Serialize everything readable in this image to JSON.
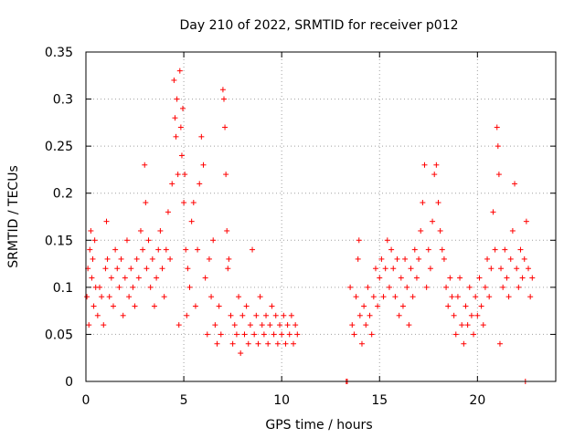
{
  "chart_data": {
    "type": "scatter",
    "title": "Day 210 of 2022, SRMTID for receiver p012",
    "xlabel": "GPS time / hours",
    "ylabel": "SRMTID / TECUs",
    "xlim": [
      0,
      24
    ],
    "ylim": [
      0,
      0.35
    ],
    "x_ticks": [
      0,
      5,
      10,
      15,
      20
    ],
    "x_tick_labels": [
      "0",
      "5",
      "10",
      "15",
      "20"
    ],
    "y_ticks": [
      0,
      0.05,
      0.1,
      0.15,
      0.2,
      0.25,
      0.3,
      0.35
    ],
    "y_tick_labels": [
      "0",
      "0.05",
      "0.1",
      "0.15",
      "0.2",
      "0.25",
      "0.3",
      "0.35"
    ],
    "grid": true,
    "marker": "+",
    "color": "#ff0000",
    "series": [
      {
        "name": "p012",
        "points": [
          [
            0.05,
            0.09
          ],
          [
            0.1,
            0.12
          ],
          [
            0.15,
            0.06
          ],
          [
            0.2,
            0.14
          ],
          [
            0.25,
            0.16
          ],
          [
            0.3,
            0.11
          ],
          [
            0.35,
            0.13
          ],
          [
            0.4,
            0.08
          ],
          [
            0.45,
            0.15
          ],
          [
            0.5,
            0.1
          ],
          [
            0.6,
            0.07
          ],
          [
            0.7,
            0.1
          ],
          [
            0.8,
            0.09
          ],
          [
            0.9,
            0.06
          ],
          [
            1.0,
            0.12
          ],
          [
            1.05,
            0.17
          ],
          [
            1.1,
            0.13
          ],
          [
            1.2,
            0.09
          ],
          [
            1.3,
            0.11
          ],
          [
            1.4,
            0.08
          ],
          [
            1.5,
            0.14
          ],
          [
            1.6,
            0.12
          ],
          [
            1.7,
            0.1
          ],
          [
            1.8,
            0.13
          ],
          [
            1.9,
            0.07
          ],
          [
            2.0,
            0.11
          ],
          [
            2.1,
            0.15
          ],
          [
            2.2,
            0.09
          ],
          [
            2.3,
            0.12
          ],
          [
            2.4,
            0.1
          ],
          [
            2.5,
            0.08
          ],
          [
            2.6,
            0.13
          ],
          [
            2.7,
            0.11
          ],
          [
            2.8,
            0.16
          ],
          [
            2.9,
            0.14
          ],
          [
            3.0,
            0.23
          ],
          [
            3.05,
            0.19
          ],
          [
            3.1,
            0.12
          ],
          [
            3.2,
            0.15
          ],
          [
            3.3,
            0.1
          ],
          [
            3.4,
            0.13
          ],
          [
            3.5,
            0.08
          ],
          [
            3.6,
            0.11
          ],
          [
            3.7,
            0.14
          ],
          [
            3.8,
            0.16
          ],
          [
            3.9,
            0.12
          ],
          [
            4.0,
            0.09
          ],
          [
            4.1,
            0.14
          ],
          [
            4.2,
            0.18
          ],
          [
            4.3,
            0.13
          ],
          [
            4.4,
            0.21
          ],
          [
            4.5,
            0.32
          ],
          [
            4.55,
            0.28
          ],
          [
            4.6,
            0.26
          ],
          [
            4.65,
            0.3
          ],
          [
            4.7,
            0.22
          ],
          [
            4.75,
            0.06
          ],
          [
            4.8,
            0.33
          ],
          [
            4.85,
            0.27
          ],
          [
            4.9,
            0.24
          ],
          [
            4.95,
            0.29
          ],
          [
            5.0,
            0.19
          ],
          [
            5.05,
            0.22
          ],
          [
            5.1,
            0.14
          ],
          [
            5.15,
            0.07
          ],
          [
            5.2,
            0.12
          ],
          [
            5.3,
            0.1
          ],
          [
            5.4,
            0.17
          ],
          [
            5.5,
            0.19
          ],
          [
            5.6,
            0.08
          ],
          [
            5.7,
            0.14
          ],
          [
            5.8,
            0.21
          ],
          [
            5.9,
            0.26
          ],
          [
            6.0,
            0.23
          ],
          [
            6.1,
            0.11
          ],
          [
            6.2,
            0.05
          ],
          [
            6.3,
            0.13
          ],
          [
            6.4,
            0.09
          ],
          [
            6.5,
            0.15
          ],
          [
            6.6,
            0.06
          ],
          [
            6.7,
            0.04
          ],
          [
            6.8,
            0.08
          ],
          [
            6.9,
            0.05
          ],
          [
            7.0,
            0.31
          ],
          [
            7.05,
            0.3
          ],
          [
            7.1,
            0.27
          ],
          [
            7.15,
            0.22
          ],
          [
            7.2,
            0.16
          ],
          [
            7.25,
            0.12
          ],
          [
            7.3,
            0.13
          ],
          [
            7.4,
            0.07
          ],
          [
            7.5,
            0.04
          ],
          [
            7.6,
            0.06
          ],
          [
            7.7,
            0.05
          ],
          [
            7.8,
            0.09
          ],
          [
            7.9,
            0.03
          ],
          [
            8.0,
            0.07
          ],
          [
            8.1,
            0.05
          ],
          [
            8.2,
            0.08
          ],
          [
            8.3,
            0.04
          ],
          [
            8.4,
            0.06
          ],
          [
            8.5,
            0.14
          ],
          [
            8.6,
            0.05
          ],
          [
            8.7,
            0.07
          ],
          [
            8.8,
            0.04
          ],
          [
            8.9,
            0.09
          ],
          [
            9.0,
            0.06
          ],
          [
            9.1,
            0.05
          ],
          [
            9.2,
            0.07
          ],
          [
            9.3,
            0.04
          ],
          [
            9.4,
            0.06
          ],
          [
            9.5,
            0.08
          ],
          [
            9.6,
            0.05
          ],
          [
            9.7,
            0.07
          ],
          [
            9.8,
            0.04
          ],
          [
            9.9,
            0.06
          ],
          [
            10.0,
            0.05
          ],
          [
            10.1,
            0.07
          ],
          [
            10.2,
            0.04
          ],
          [
            10.3,
            0.06
          ],
          [
            10.4,
            0.05
          ],
          [
            10.5,
            0.07
          ],
          [
            10.6,
            0.04
          ],
          [
            10.7,
            0.06
          ],
          [
            10.8,
            0.05
          ],
          [
            13.3,
            0.0
          ],
          [
            13.35,
            0.0
          ],
          [
            13.5,
            0.1
          ],
          [
            13.6,
            0.06
          ],
          [
            13.7,
            0.05
          ],
          [
            13.8,
            0.09
          ],
          [
            13.9,
            0.13
          ],
          [
            13.95,
            0.15
          ],
          [
            14.0,
            0.07
          ],
          [
            14.1,
            0.04
          ],
          [
            14.2,
            0.08
          ],
          [
            14.3,
            0.06
          ],
          [
            14.4,
            0.1
          ],
          [
            14.5,
            0.07
          ],
          [
            14.6,
            0.05
          ],
          [
            14.7,
            0.09
          ],
          [
            14.8,
            0.12
          ],
          [
            14.9,
            0.08
          ],
          [
            15.0,
            0.11
          ],
          [
            15.1,
            0.13
          ],
          [
            15.2,
            0.09
          ],
          [
            15.3,
            0.12
          ],
          [
            15.4,
            0.15
          ],
          [
            15.5,
            0.1
          ],
          [
            15.6,
            0.14
          ],
          [
            15.7,
            0.12
          ],
          [
            15.8,
            0.09
          ],
          [
            15.9,
            0.13
          ],
          [
            16.0,
            0.07
          ],
          [
            16.1,
            0.11
          ],
          [
            16.2,
            0.08
          ],
          [
            16.3,
            0.13
          ],
          [
            16.4,
            0.1
          ],
          [
            16.5,
            0.06
          ],
          [
            16.6,
            0.12
          ],
          [
            16.7,
            0.09
          ],
          [
            16.8,
            0.14
          ],
          [
            16.9,
            0.11
          ],
          [
            17.0,
            0.13
          ],
          [
            17.1,
            0.16
          ],
          [
            17.2,
            0.19
          ],
          [
            17.3,
            0.23
          ],
          [
            17.4,
            0.1
          ],
          [
            17.5,
            0.14
          ],
          [
            17.6,
            0.12
          ],
          [
            17.7,
            0.17
          ],
          [
            17.8,
            0.22
          ],
          [
            17.9,
            0.23
          ],
          [
            18.0,
            0.19
          ],
          [
            18.1,
            0.16
          ],
          [
            18.2,
            0.14
          ],
          [
            18.3,
            0.13
          ],
          [
            18.4,
            0.1
          ],
          [
            18.5,
            0.08
          ],
          [
            18.6,
            0.11
          ],
          [
            18.7,
            0.09
          ],
          [
            18.8,
            0.07
          ],
          [
            18.9,
            0.05
          ],
          [
            19.0,
            0.09
          ],
          [
            19.1,
            0.11
          ],
          [
            19.2,
            0.06
          ],
          [
            19.3,
            0.04
          ],
          [
            19.4,
            0.08
          ],
          [
            19.5,
            0.06
          ],
          [
            19.6,
            0.1
          ],
          [
            19.7,
            0.07
          ],
          [
            19.8,
            0.05
          ],
          [
            19.9,
            0.09
          ],
          [
            20.0,
            0.07
          ],
          [
            20.1,
            0.11
          ],
          [
            20.2,
            0.08
          ],
          [
            20.3,
            0.06
          ],
          [
            20.4,
            0.1
          ],
          [
            20.5,
            0.13
          ],
          [
            20.6,
            0.09
          ],
          [
            20.7,
            0.12
          ],
          [
            20.8,
            0.18
          ],
          [
            20.9,
            0.14
          ],
          [
            21.0,
            0.27
          ],
          [
            21.05,
            0.25
          ],
          [
            21.1,
            0.22
          ],
          [
            21.15,
            0.04
          ],
          [
            21.2,
            0.12
          ],
          [
            21.3,
            0.1
          ],
          [
            21.4,
            0.14
          ],
          [
            21.5,
            0.11
          ],
          [
            21.6,
            0.09
          ],
          [
            21.7,
            0.13
          ],
          [
            21.8,
            0.16
          ],
          [
            21.9,
            0.21
          ],
          [
            22.0,
            0.12
          ],
          [
            22.1,
            0.1
          ],
          [
            22.2,
            0.14
          ],
          [
            22.3,
            0.11
          ],
          [
            22.4,
            0.13
          ],
          [
            22.45,
            0.0
          ],
          [
            22.5,
            0.17
          ],
          [
            22.6,
            0.12
          ],
          [
            22.7,
            0.09
          ],
          [
            22.8,
            0.11
          ]
        ]
      }
    ]
  }
}
